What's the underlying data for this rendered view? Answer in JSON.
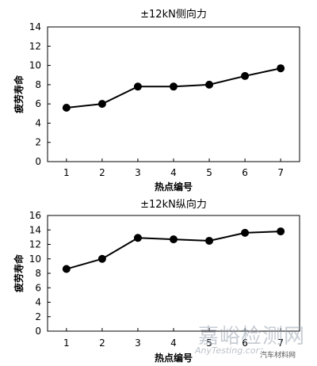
{
  "chart_data": [
    {
      "type": "line",
      "title": "±12kN侧向力",
      "xlabel": "热点编号",
      "ylabel": "疲劳寿命",
      "x": [
        1,
        2,
        3,
        4,
        5,
        6,
        7
      ],
      "values": [
        5.6,
        6.0,
        7.8,
        7.8,
        8.0,
        8.9,
        9.7
      ],
      "ylim": [
        0,
        14
      ],
      "yticks": [
        0,
        2,
        4,
        6,
        8,
        10,
        12,
        14
      ],
      "grid": false,
      "color": "#000000"
    },
    {
      "type": "line",
      "title": "±12kN纵向力",
      "xlabel": "热点编号",
      "ylabel": "疲劳寿命",
      "x": [
        1,
        2,
        3,
        4,
        5,
        6,
        7
      ],
      "values": [
        8.6,
        10.0,
        12.9,
        12.7,
        12.5,
        13.6,
        13.8
      ],
      "ylim": [
        0,
        16
      ],
      "yticks": [
        0,
        2,
        4,
        6,
        8,
        10,
        12,
        14,
        16
      ],
      "grid": false,
      "color": "#000000"
    }
  ],
  "watermark": {
    "main": "嘉峪检测网",
    "sub": "AnyTesting.com",
    "source": "汽车材料网"
  }
}
